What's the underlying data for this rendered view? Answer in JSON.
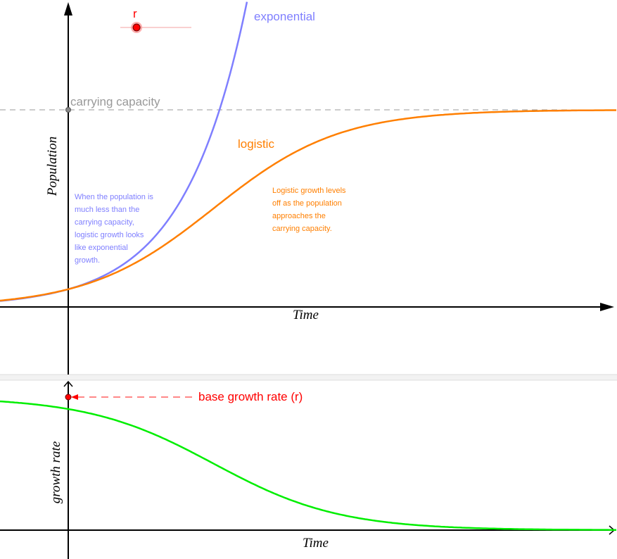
{
  "slider": {
    "label": "r",
    "value": 0.56,
    "fraction": 0.1,
    "color": "#ff0000"
  },
  "chart_data": [
    {
      "type": "line",
      "xlabel": "Time",
      "ylabel": "Population",
      "xlim": [
        -1.94,
        15.56
      ],
      "ylim": [
        -1.9,
        1.56
      ],
      "carrying_capacity": 1,
      "initial_population": 0.09,
      "r": 0.56,
      "reference_line": {
        "label": "carrying capacity",
        "value": 1,
        "color": "#999999"
      },
      "series": [
        {
          "name": "exponential",
          "formula": "P0*exp(r*t)",
          "color": "#7f7fff"
        },
        {
          "name": "logistic",
          "formula": "K/(1+((K-P0)/P0)*exp(-r*t))",
          "color": "#ff7f00"
        }
      ],
      "annotations": [
        {
          "text": "When the population is much less than the carrying capacity, logistic growth looks like exponential growth.",
          "color": "#7f7fff"
        },
        {
          "text": "Logistic growth levels off as the population approaches the carrying capacity.",
          "color": "#ff7f00"
        }
      ]
    },
    {
      "type": "line",
      "xlabel": "Time",
      "ylabel": "growth rate",
      "xlim": [
        -1.94,
        15.56
      ],
      "ylim": [
        -0.11,
        0.6
      ],
      "series": [
        {
          "formula": "r*(1-P/K)",
          "color": "#00ff00"
        }
      ],
      "base_point": {
        "label": "base growth rate (r)",
        "value": 0.56,
        "color": "#ff0000"
      }
    }
  ],
  "notes": {
    "exp_lines": [
      "When the population is",
      "much less than the",
      "carrying capacity,",
      "logistic growth looks",
      "like exponential",
      "growth."
    ],
    "log_lines": [
      "Logistic growth levels",
      "off as the population",
      "approaches the",
      "carrying capacity."
    ]
  }
}
